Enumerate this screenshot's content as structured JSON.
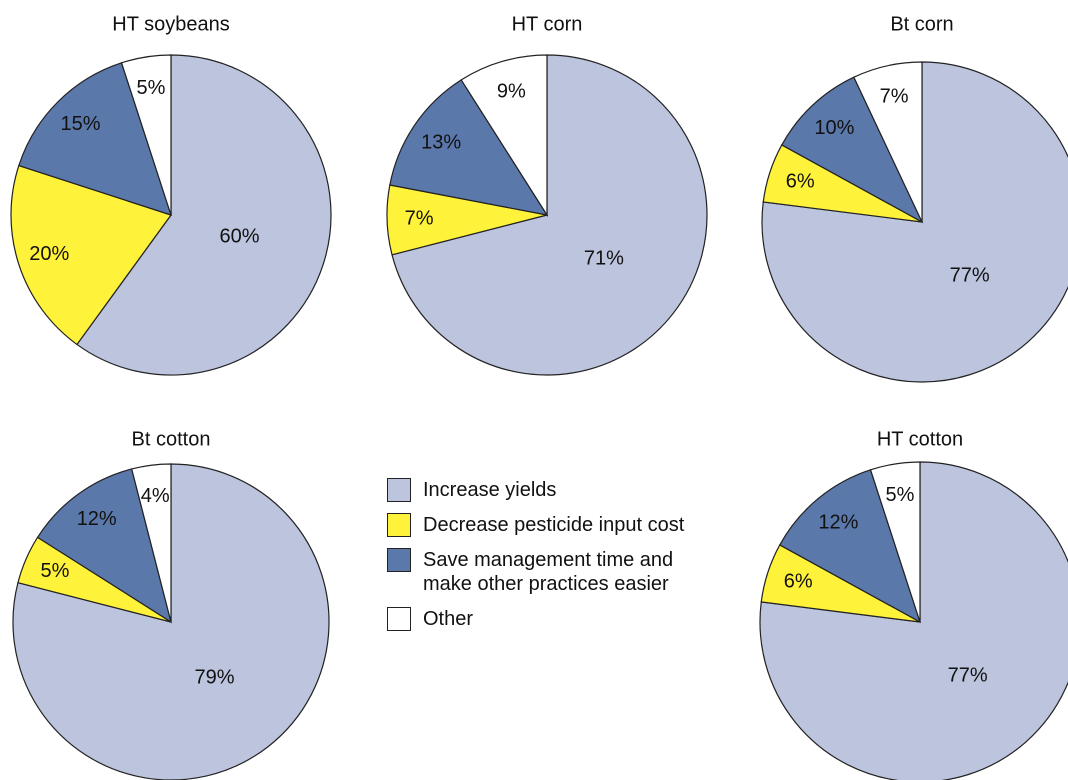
{
  "chart_data": [
    {
      "type": "pie",
      "title": "HT soybeans",
      "categories": [
        "Increase yields",
        "Decrease pesticide input cost",
        "Save management time and make other practices easier",
        "Other"
      ],
      "colors": [
        "#bcc4de",
        "#fff23a",
        "#5b78ab",
        "#ffffff"
      ],
      "values": [
        60,
        20,
        15,
        5
      ],
      "value_labels": [
        "60%",
        "20%",
        "15%",
        "5%"
      ]
    },
    {
      "type": "pie",
      "title": "HT corn",
      "categories": [
        "Increase yields",
        "Decrease pesticide input cost",
        "Save management time and make other practices easier",
        "Other"
      ],
      "colors": [
        "#bcc4de",
        "#fff23a",
        "#5b78ab",
        "#ffffff"
      ],
      "values": [
        71,
        7,
        13,
        9
      ],
      "value_labels": [
        "71%",
        "7%",
        "13%",
        "9%"
      ]
    },
    {
      "type": "pie",
      "title": "Bt corn",
      "categories": [
        "Increase yields",
        "Decrease pesticide input cost",
        "Save management time and make other practices easier",
        "Other"
      ],
      "colors": [
        "#bcc4de",
        "#fff23a",
        "#5b78ab",
        "#ffffff"
      ],
      "values": [
        77,
        6,
        10,
        7
      ],
      "value_labels": [
        "77%",
        "6%",
        "10%",
        "7%"
      ]
    },
    {
      "type": "pie",
      "title": "Bt cotton",
      "categories": [
        "Increase yields",
        "Decrease pesticide input cost",
        "Save management time and make other practices easier",
        "Other"
      ],
      "colors": [
        "#bcc4de",
        "#fff23a",
        "#5b78ab",
        "#ffffff"
      ],
      "values": [
        79,
        5,
        12,
        4
      ],
      "value_labels": [
        "79%",
        "5%",
        "12%",
        "4%"
      ]
    },
    {
      "type": "pie",
      "title": "HT cotton",
      "categories": [
        "Increase yields",
        "Decrease pesticide input cost",
        "Save management time and make other practices easier",
        "Other"
      ],
      "colors": [
        "#bcc4de",
        "#fff23a",
        "#5b78ab",
        "#ffffff"
      ],
      "values": [
        77,
        6,
        12,
        5
      ],
      "value_labels": [
        "77%",
        "6%",
        "12%",
        "5%"
      ]
    }
  ]
}
